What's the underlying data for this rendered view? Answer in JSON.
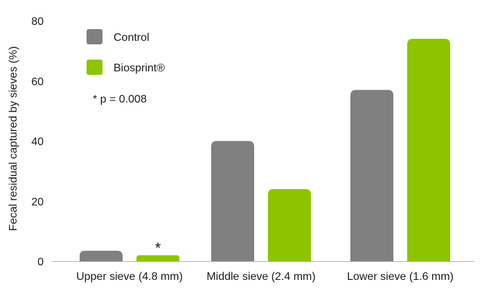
{
  "chart_data": {
    "type": "bar",
    "title": "",
    "xlabel": "",
    "ylabel": "Fecal residual captured by sieves (%)",
    "ylim": [
      0,
      80
    ],
    "yticks": [
      0,
      20,
      40,
      60,
      80
    ],
    "grid": false,
    "legend_position": "top-left",
    "categories": [
      "Upper sieve (4.8 mm)",
      "Middle sieve (2.4 mm)",
      "Lower sieve (1.6 mm)"
    ],
    "series": [
      {
        "name": "Control",
        "color": "#808080",
        "values": [
          3.5,
          40,
          57
        ]
      },
      {
        "name": "Biosprint®",
        "color": "#8cc400",
        "values": [
          2,
          24,
          74
        ]
      }
    ],
    "annotations": {
      "significance_note": "* p = 0.008",
      "significance_marker": "*"
    }
  }
}
